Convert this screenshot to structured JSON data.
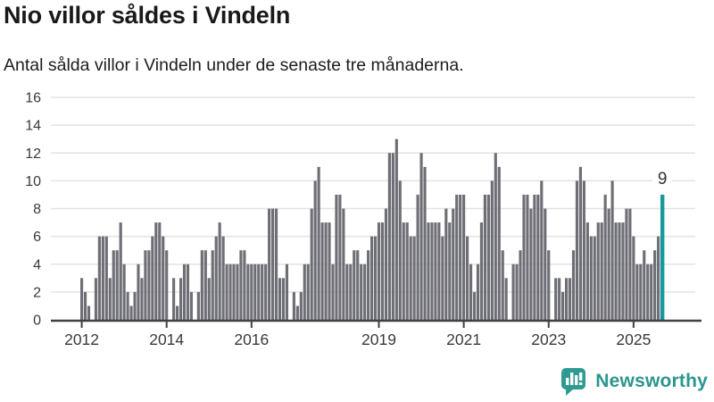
{
  "header": {
    "title": "Nio villor såldes i Vindeln",
    "subtitle": "Antal sålda villor i Vindeln under de senaste tre månaderna."
  },
  "footer": {
    "brand": "Newsworthy",
    "logo_icon": "bar-chart-speech-bubble-icon"
  },
  "colors": {
    "bar": "#6e6e76",
    "highlight": "#17999b",
    "grid": "#e3e3e3",
    "axis": "#404040",
    "tick_text": "#3a3a3a",
    "text": "#191919",
    "brand": "#2b968e",
    "annotation_text": "#333333"
  },
  "chart_data": {
    "type": "bar",
    "title": "Nio villor såldes i Vindeln",
    "subtitle": "Antal sålda villor i Vindeln under de senaste tre månaderna.",
    "unit": "sålda villor (rullande tre månader)",
    "frequency": "monthly",
    "start_period": "2012-01",
    "end_period": "2025-09",
    "ylim": [
      0,
      16
    ],
    "grid": true,
    "y_ticks": [
      0,
      2,
      4,
      6,
      8,
      10,
      12,
      14,
      16
    ],
    "x_ticks": [
      {
        "label": "2012",
        "month_index": 0
      },
      {
        "label": "2014",
        "month_index": 24
      },
      {
        "label": "2016",
        "month_index": 48
      },
      {
        "label": "2019",
        "month_index": 84
      },
      {
        "label": "2021",
        "month_index": 108
      },
      {
        "label": "2023",
        "month_index": 132
      },
      {
        "label": "2025",
        "month_index": 156
      }
    ],
    "values": [
      3,
      2,
      1,
      0,
      3,
      6,
      6,
      6,
      3,
      5,
      5,
      7,
      4,
      2,
      1,
      2,
      4,
      3,
      5,
      5,
      6,
      7,
      7,
      6,
      5,
      0,
      3,
      1,
      3,
      4,
      4,
      2,
      0,
      2,
      5,
      5,
      3,
      5,
      6,
      7,
      6,
      4,
      4,
      4,
      4,
      5,
      5,
      4,
      4,
      4,
      4,
      4,
      4,
      8,
      8,
      8,
      3,
      3,
      4,
      0,
      2,
      1,
      2,
      4,
      4,
      8,
      10,
      11,
      7,
      7,
      7,
      4,
      9,
      9,
      8,
      4,
      4,
      5,
      5,
      4,
      4,
      5,
      6,
      6,
      7,
      7,
      8,
      12,
      12,
      13,
      10,
      7,
      7,
      6,
      6,
      9,
      12,
      11,
      7,
      7,
      7,
      7,
      6,
      8,
      7,
      8,
      9,
      9,
      9,
      6,
      4,
      2,
      4,
      7,
      9,
      9,
      10,
      12,
      11,
      5,
      3,
      0,
      4,
      4,
      5,
      9,
      9,
      8,
      9,
      9,
      10,
      8,
      5,
      0,
      3,
      3,
      2,
      3,
      3,
      5,
      10,
      11,
      10,
      7,
      6,
      6,
      7,
      7,
      9,
      8,
      10,
      7,
      7,
      7,
      8,
      8,
      6,
      4,
      4,
      5,
      4,
      4,
      5,
      6,
      9
    ],
    "highlight_last": true,
    "last_value": 9,
    "last_value_label": "9"
  }
}
